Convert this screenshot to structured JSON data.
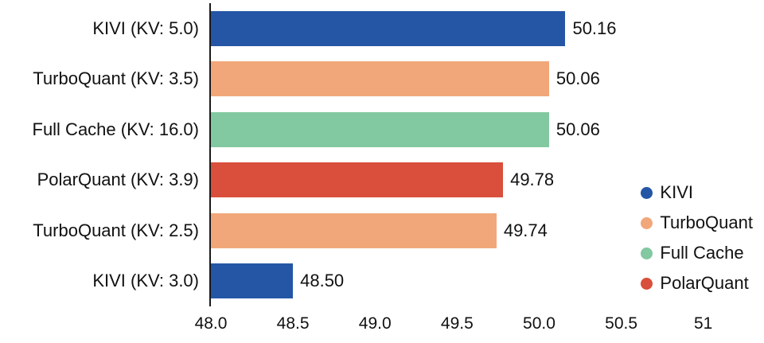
{
  "chart_data": {
    "type": "bar",
    "orientation": "horizontal",
    "title": "",
    "xlabel": "",
    "ylabel": "",
    "categories": [
      "KIVI (KV: 5.0)",
      "TurboQuant (KV: 3.5)",
      "Full Cache (KV: 16.0)",
      "PolarQuant (KV: 3.9)",
      "TurboQuant (KV: 2.5)",
      "KIVI (KV: 3.0)"
    ],
    "values": [
      50.16,
      50.06,
      50.06,
      49.78,
      49.74,
      48.5
    ],
    "value_labels": [
      "50.16",
      "50.06",
      "50.06",
      "49.78",
      "49.74",
      "48.50"
    ],
    "bar_series": [
      "KIVI",
      "TurboQuant",
      "Full Cache",
      "PolarQuant",
      "TurboQuant",
      "KIVI"
    ],
    "xlim": [
      48.0,
      51.37
    ],
    "x_ticks": [
      "48.0",
      "48.5",
      "49.0",
      "49.5",
      "50.0",
      "50.5",
      "51"
    ],
    "x_tick_values": [
      48.0,
      48.5,
      49.0,
      49.5,
      50.0,
      50.5,
      51
    ],
    "grid": false,
    "legend_position": "lower right",
    "legend": [
      {
        "label": "KIVI",
        "color": "#2456a5"
      },
      {
        "label": "TurboQuant",
        "color": "#f1a77a"
      },
      {
        "label": "Full Cache",
        "color": "#82c8a0"
      },
      {
        "label": "PolarQuant",
        "color": "#d94f3c"
      }
    ],
    "text_color": "#111111",
    "spine_color": "#1a1a1a"
  }
}
